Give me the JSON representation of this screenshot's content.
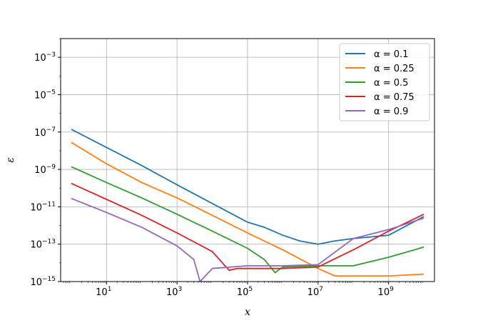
{
  "chart_data": {
    "type": "line",
    "xlabel": "x",
    "ylabel": "ε",
    "xscale": "log",
    "yscale": "log",
    "xlim": [
      0.5,
      20000000000
    ],
    "ylim": [
      1e-15,
      0.01
    ],
    "grid": true,
    "legend_position": "top-right",
    "x_ticks": [
      {
        "value": 10,
        "base": "10",
        "exp": "1"
      },
      {
        "value": 1000,
        "base": "10",
        "exp": "3"
      },
      {
        "value": 100000,
        "base": "10",
        "exp": "5"
      },
      {
        "value": 10000000,
        "base": "10",
        "exp": "7"
      },
      {
        "value": 1000000000,
        "base": "10",
        "exp": "9"
      }
    ],
    "y_ticks": [
      {
        "value": 1e-15,
        "base": "10",
        "exp": "−15"
      },
      {
        "value": 1e-13,
        "base": "10",
        "exp": "−13"
      },
      {
        "value": 1e-11,
        "base": "10",
        "exp": "−11"
      },
      {
        "value": 1e-09,
        "base": "10",
        "exp": "−9"
      },
      {
        "value": 1e-07,
        "base": "10",
        "exp": "−7"
      },
      {
        "value": 1e-05,
        "base": "10",
        "exp": "−5"
      },
      {
        "value": 0.001,
        "base": "10",
        "exp": "−3"
      }
    ],
    "series": [
      {
        "name": "α = 0.1",
        "color": "#1f77b4",
        "x": [
          1,
          10,
          100,
          1000,
          10000,
          100000,
          300000,
          1000000,
          3000000,
          10000000,
          30000000,
          100000000,
          1000000000,
          10000000000
        ],
        "y": [
          1.4e-07,
          1.5e-08,
          1.6e-09,
          1.5e-10,
          1.5e-11,
          1.5e-12,
          8e-13,
          3e-13,
          1.5e-13,
          1e-13,
          1.5e-13,
          2e-13,
          3e-13,
          3e-12
        ]
      },
      {
        "name": "α = 0.25",
        "color": "#ff7f0e",
        "x": [
          1,
          10,
          100,
          1000,
          10000,
          100000,
          1000000,
          10000000,
          30000000,
          100000000,
          1000000000,
          10000000000
        ],
        "y": [
          2.8e-08,
          2e-09,
          2e-10,
          3e-11,
          3.5e-12,
          4e-13,
          5e-14,
          5e-15,
          2e-15,
          2e-15,
          2e-15,
          2.5e-15
        ]
      },
      {
        "name": "α = 0.5",
        "color": "#2ca02c",
        "x": [
          1,
          10,
          100,
          1000,
          10000,
          100000,
          300000,
          600000,
          1000000,
          10000000,
          100000000,
          1000000000,
          10000000000
        ],
        "y": [
          1.4e-09,
          2e-10,
          3e-11,
          4e-12,
          5e-13,
          6e-14,
          1.5e-14,
          3e-15,
          6e-15,
          7e-15,
          7e-15,
          2e-14,
          7e-14
        ]
      },
      {
        "name": "α = 0.75",
        "color": "#d62728",
        "x": [
          1,
          10,
          100,
          1000,
          10000,
          30000,
          50000,
          100000,
          1000000,
          10000000,
          100000000,
          1000000000,
          10000000000
        ],
        "y": [
          1.8e-10,
          2.5e-11,
          3.5e-12,
          4e-13,
          4e-14,
          4e-15,
          5e-15,
          5e-15,
          5e-15,
          6e-15,
          5e-14,
          5e-13,
          4e-12
        ]
      },
      {
        "name": "α = 0.9",
        "color": "#9467bd",
        "x": [
          1,
          10,
          100,
          1000,
          3000,
          4500,
          10000,
          100000,
          1000000,
          10000000,
          100000000,
          1000000000,
          10000000000
        ],
        "y": [
          2.8e-11,
          5e-12,
          8e-13,
          8e-14,
          1.5e-14,
          1e-15,
          5e-15,
          7e-15,
          7e-15,
          8e-15,
          2e-13,
          6e-13,
          2.5e-12
        ]
      }
    ]
  }
}
